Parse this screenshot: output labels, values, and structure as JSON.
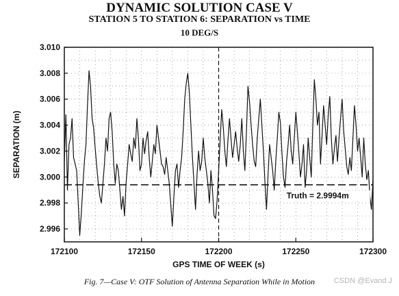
{
  "chart_data": {
    "type": "line",
    "title": "DYNAMIC SOLUTION CASE V",
    "subtitle": "STATION 5 TO STATION 6: SEPARATION vs TIME",
    "subtitle2": "10 DEG/S",
    "xlabel": "GPS TIME OF WEEK (s)",
    "ylabel": "SEPARATION (m)",
    "xlim": [
      172100,
      172300
    ],
    "ylim": [
      2.995,
      3.01
    ],
    "x_ticks": [
      "172100",
      "172150",
      "172200",
      "172250",
      "172300"
    ],
    "x_tick_values": [
      172100,
      172150,
      172200,
      172250,
      172300
    ],
    "y_ticks": [
      "3.010",
      "3.008",
      "3.006",
      "3.004",
      "3.002",
      "3.000",
      "2.998",
      "2.996"
    ],
    "y_tick_values": [
      3.01,
      3.008,
      3.006,
      3.004,
      3.002,
      3.0,
      2.998,
      2.996
    ],
    "grid": true,
    "series": [
      {
        "x": [
          172100,
          172101,
          172102,
          172103,
          172104,
          172105,
          172106,
          172107,
          172108,
          172109,
          172110,
          172111,
          172112,
          172113,
          172114,
          172115,
          172116,
          172117,
          172118,
          172119,
          172120,
          172121,
          172122,
          172123,
          172124,
          172125,
          172126,
          172127,
          172128,
          172129,
          172130,
          172131,
          172132,
          172133,
          172134,
          172135,
          172136,
          172137,
          172138,
          172139,
          172140,
          172141,
          172142,
          172143,
          172144,
          172145,
          172146,
          172147,
          172148,
          172149,
          172150,
          172151,
          172152,
          172153,
          172154,
          172155,
          172156,
          172157,
          172158,
          172159,
          172160,
          172161,
          172162,
          172163,
          172164,
          172165,
          172166,
          172167,
          172168,
          172169,
          172170,
          172171,
          172172,
          172173,
          172174,
          172175,
          172176,
          172177,
          172178,
          172179,
          172180,
          172181,
          172182,
          172183,
          172184,
          172185,
          172186,
          172187,
          172188,
          172189,
          172190,
          172191,
          172192,
          172193,
          172194,
          172195,
          172196,
          172197,
          172198,
          172199,
          172200,
          172201,
          172202,
          172203,
          172204,
          172205,
          172206,
          172207,
          172208,
          172209,
          172210,
          172211,
          172212,
          172213,
          172214,
          172215,
          172216,
          172217,
          172218,
          172219,
          172220,
          172221,
          172222,
          172223,
          172224,
          172225,
          172226,
          172227,
          172228,
          172229,
          172230,
          172231,
          172232,
          172233,
          172234,
          172235,
          172236,
          172237,
          172238,
          172239,
          172240,
          172241,
          172242,
          172243,
          172244,
          172245,
          172246,
          172247,
          172248,
          172249,
          172250,
          172251,
          172252,
          172253,
          172254,
          172255,
          172256,
          172257,
          172258,
          172259,
          172260,
          172261,
          172262,
          172263,
          172264,
          172265,
          172266,
          172267,
          172268,
          172269,
          172270,
          172271,
          172272,
          172273,
          172274,
          172275,
          172276,
          172277,
          172278,
          172279,
          172280,
          172281,
          172282,
          172283,
          172284,
          172285,
          172286,
          172287,
          172288,
          172289,
          172290,
          172291,
          172292,
          172293,
          172294,
          172295,
          172296,
          172297,
          172298,
          172299,
          172300
        ],
        "y": [
          3.0012,
          3.0048,
          2.999,
          3.0025,
          3.003,
          3.0045,
          3.0015,
          3.001,
          3.0005,
          2.998,
          2.9955,
          2.9972,
          2.9993,
          3.0012,
          3.0025,
          3.0055,
          3.0082,
          3.007,
          3.0045,
          3.0038,
          3.0022,
          3.0008,
          2.9995,
          2.9985,
          2.998,
          2.9995,
          3.001,
          3.003,
          3.002,
          3.0045,
          3.005,
          3.0035,
          3.001,
          2.9995,
          3.001,
          3.0005,
          2.999,
          2.9975,
          2.9985,
          2.997,
          2.9995,
          3.001,
          3.0025,
          3.0018,
          3.0012,
          3.003,
          3.0022,
          3.0045,
          3.003,
          3.0005,
          3.001,
          3.003,
          3.0018,
          3.0028,
          3.0035,
          3.0015,
          3.0,
          3.0012,
          3.0025,
          3.0018,
          3.004,
          3.003,
          3.002,
          3.001,
          3.0008,
          3.0002,
          3.0015,
          3.0005,
          2.9995,
          2.9978,
          2.9962,
          2.9985,
          3.0005,
          3.001,
          2.9992,
          3.0005,
          3.0015,
          3.0035,
          3.006,
          3.0072,
          3.008,
          3.0065,
          3.004,
          3.0015,
          2.9995,
          2.9975,
          3.0002,
          3.002,
          3.0005,
          3.0012,
          3.003,
          3.0015,
          3.0005,
          2.9995,
          2.998,
          3.0005,
          2.999,
          2.997,
          2.9968,
          2.9982,
          3.0005,
          3.003,
          3.0052,
          3.0038,
          3.002,
          3.0008,
          3.0028,
          3.0045,
          3.003,
          3.0015,
          3.0025,
          3.0035,
          3.0022,
          3.0012,
          3.0025,
          3.0045,
          3.002,
          3.0005,
          3.0035,
          3.007,
          3.0058,
          3.004,
          3.0025,
          3.0012,
          3.0008,
          3.003,
          3.0045,
          3.006,
          3.004,
          3.002,
          2.9995,
          2.9975,
          3.0002,
          3.0025,
          3.0015,
          3.0005,
          2.999,
          3.0012,
          3.003,
          3.005,
          3.0042,
          3.0018,
          3.0,
          2.9992,
          3.0012,
          3.0025,
          3.004,
          3.002,
          3.001,
          3.003,
          3.005,
          3.0035,
          3.0018,
          3.0,
          3.001,
          3.0025,
          2.9992,
          3.0005,
          3.003,
          3.0015,
          3.0,
          3.004,
          3.0075,
          3.006,
          3.004,
          3.005,
          3.001,
          3.0032,
          3.0055,
          3.004,
          3.0025,
          3.0048,
          3.0062,
          3.003,
          3.001,
          3.0022,
          3.0032,
          3.0012,
          3.003,
          3.0045,
          3.006,
          3.0035,
          3.0022,
          3.0008,
          3.0002,
          3.0015,
          3.0005,
          3.003,
          3.0055,
          3.004,
          3.002,
          3.003,
          3.0015,
          3.0,
          3.003,
          3.001,
          2.9998,
          3.0005,
          2.9985,
          2.9975,
          2.9998
        ]
      }
    ],
    "truth": {
      "value": 2.9994,
      "label": "Truth = 2.9994m"
    },
    "vertical_marker_x": 172200,
    "caption": "Fig. 7—Case V: OTF Solution of Antenna Separation While in Motion",
    "watermark": "CSDN @Evand J"
  }
}
